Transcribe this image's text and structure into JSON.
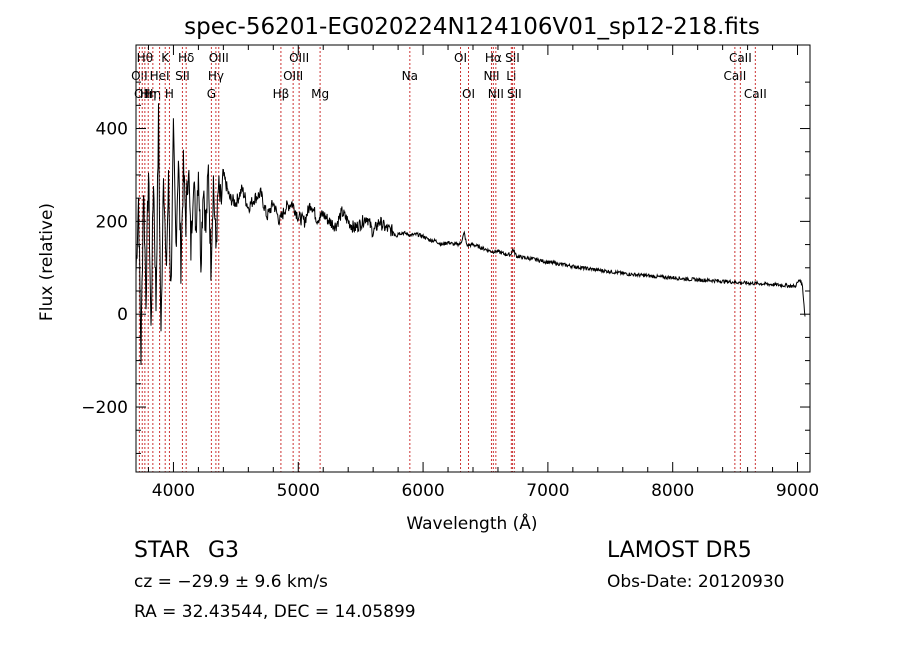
{
  "chart_data": {
    "type": "line",
    "title": "spec-56201-EG020224N124106V01_sp12-218.fits",
    "xlabel": "Wavelength (Å)",
    "ylabel": "Flux (relative)",
    "xlim": [
      3700,
      9100
    ],
    "ylim": [
      -340,
      580
    ],
    "xticks": [
      4000,
      5000,
      6000,
      7000,
      8000,
      9000
    ],
    "yticks": [
      -200,
      0,
      200,
      400
    ],
    "xtick_labels": [
      "4000",
      "5000",
      "6000",
      "7000",
      "8000",
      "9000"
    ],
    "ytick_labels": [
      "−200",
      "0",
      "200",
      "400"
    ],
    "grid": false,
    "line_color": "#000000",
    "marker_color": "#cc3333",
    "spectrum": {
      "x": [
        3700,
        3720,
        3740,
        3760,
        3780,
        3800,
        3820,
        3840,
        3860,
        3880,
        3900,
        3920,
        3940,
        3960,
        3980,
        4000,
        4020,
        4040,
        4060,
        4080,
        4100,
        4120,
        4140,
        4160,
        4180,
        4200,
        4220,
        4240,
        4260,
        4280,
        4300,
        4320,
        4340,
        4360,
        4380,
        4400,
        4450,
        4500,
        4550,
        4600,
        4650,
        4700,
        4750,
        4800,
        4850,
        4900,
        4950,
        5000,
        5050,
        5100,
        5150,
        5200,
        5250,
        5300,
        5350,
        5400,
        5450,
        5500,
        5550,
        5600,
        5650,
        5700,
        5750,
        5800,
        5850,
        5900,
        5950,
        6000,
        6050,
        6100,
        6150,
        6200,
        6250,
        6300,
        6330,
        6350,
        6400,
        6450,
        6500,
        6550,
        6600,
        6650,
        6700,
        6720,
        6750,
        6800,
        6900,
        7000,
        7100,
        7200,
        7300,
        7400,
        7500,
        7600,
        7700,
        7800,
        7900,
        8000,
        8100,
        8200,
        8300,
        8400,
        8500,
        8600,
        8700,
        8800,
        8900,
        8980,
        9020,
        9040,
        9060
      ],
      "y": [
        90,
        250,
        -90,
        280,
        40,
        310,
        -40,
        300,
        20,
        420,
        -60,
        330,
        80,
        280,
        50,
        380,
        150,
        340,
        110,
        310,
        200,
        330,
        140,
        300,
        190,
        320,
        120,
        290,
        180,
        310,
        110,
        290,
        140,
        270,
        230,
        300,
        250,
        240,
        270,
        230,
        250,
        260,
        210,
        240,
        200,
        230,
        240,
        210,
        200,
        240,
        205,
        215,
        200,
        190,
        220,
        200,
        185,
        195,
        210,
        175,
        200,
        185,
        180,
        175,
        175,
        170,
        172,
        168,
        160,
        158,
        150,
        155,
        150,
        152,
        175,
        148,
        150,
        145,
        140,
        135,
        135,
        130,
        128,
        140,
        125,
        122,
        118,
        112,
        108,
        103,
        99,
        95,
        92,
        88,
        85,
        83,
        80,
        79,
        76,
        74,
        73,
        71,
        69,
        67,
        66,
        64,
        62,
        60,
        75,
        60,
        -5
      ]
    },
    "line_markers": [
      {
        "wavelength": 3727,
        "label": "OII",
        "row": 1
      },
      {
        "wavelength": 3750,
        "label": "OII",
        "row": 2
      },
      {
        "wavelength": 3771,
        "label": "Hθ",
        "row": 0
      },
      {
        "wavelength": 3798,
        "label": "Hη",
        "row": 2
      },
      {
        "wavelength": 3835,
        "label": "Hη",
        "row": 2
      },
      {
        "wavelength": 3889,
        "label": "HeI",
        "row": 1
      },
      {
        "wavelength": 3934,
        "label": "K",
        "row": 0
      },
      {
        "wavelength": 3968,
        "label": "H",
        "row": 2
      },
      {
        "wavelength": 4072,
        "label": "SII",
        "row": 1
      },
      {
        "wavelength": 4102,
        "label": "Hδ",
        "row": 0
      },
      {
        "wavelength": 4304,
        "label": "G",
        "row": 2
      },
      {
        "wavelength": 4340,
        "label": "Hγ",
        "row": 1
      },
      {
        "wavelength": 4363,
        "label": "OIII",
        "row": 0
      },
      {
        "wavelength": 4861,
        "label": "Hβ",
        "row": 2
      },
      {
        "wavelength": 4959,
        "label": "OIII",
        "row": 1
      },
      {
        "wavelength": 5007,
        "label": "OIII",
        "row": 0
      },
      {
        "wavelength": 5175,
        "label": "Mg",
        "row": 2
      },
      {
        "wavelength": 5894,
        "label": "Na",
        "row": 1
      },
      {
        "wavelength": 6300,
        "label": "OI",
        "row": 0
      },
      {
        "wavelength": 6364,
        "label": "OI",
        "row": 2
      },
      {
        "wavelength": 6548,
        "label": "NII",
        "row": 1
      },
      {
        "wavelength": 6563,
        "label": "Hα",
        "row": 0
      },
      {
        "wavelength": 6583,
        "label": "NII",
        "row": 2
      },
      {
        "wavelength": 6707,
        "label": "Li",
        "row": 1
      },
      {
        "wavelength": 6716,
        "label": "SII",
        "row": 0
      },
      {
        "wavelength": 6731,
        "label": "SII",
        "row": 2
      },
      {
        "wavelength": 8498,
        "label": "CaII",
        "row": 1
      },
      {
        "wavelength": 8542,
        "label": "CaII",
        "row": 0
      },
      {
        "wavelength": 8662,
        "label": "CaII",
        "row": 2
      }
    ]
  },
  "info": {
    "object_class": "STAR",
    "spectral_subclass": "G3",
    "survey": "LAMOST DR5",
    "redshift": "cz = −29.9 ± 9.6 km/s",
    "obs_date": "Obs-Date: 20120930",
    "coordinates": "RA =  32.43544, DEC =  14.05899"
  }
}
